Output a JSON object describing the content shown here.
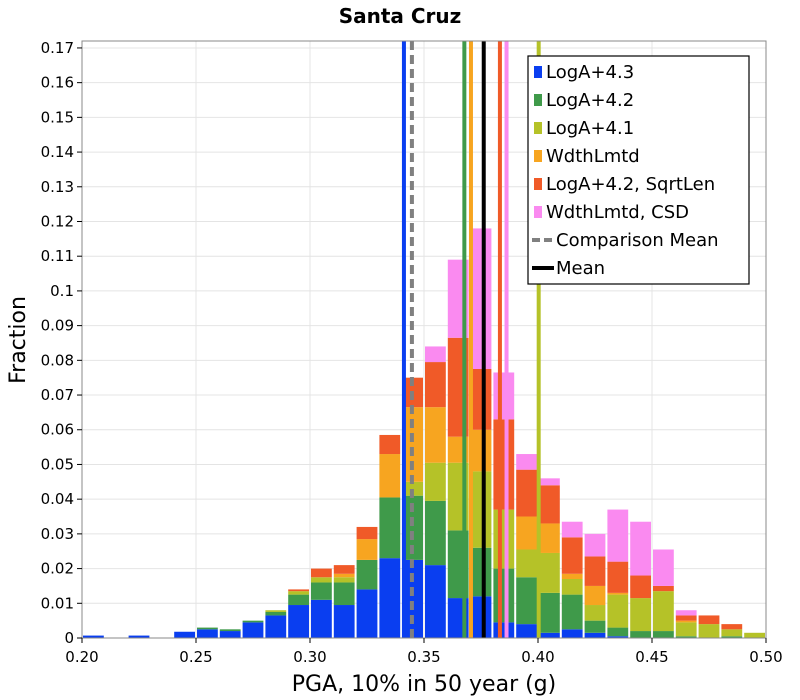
{
  "chart_data": {
    "type": "bar",
    "stacked": true,
    "title": "Santa Cruz",
    "xlabel": "PGA, 10% in 50 year (g)",
    "ylabel": "Fraction",
    "xlim": [
      0.2,
      0.5
    ],
    "ylim": [
      0,
      0.172
    ],
    "x_ticks": [
      "0.20",
      "0.25",
      "0.30",
      "0.35",
      "0.40",
      "0.45",
      "0.50"
    ],
    "y_ticks": [
      "0",
      "0.01",
      "0.02",
      "0.03",
      "0.04",
      "0.05",
      "0.06",
      "0.07",
      "0.08",
      "0.09",
      "0.1",
      "0.11",
      "0.12",
      "0.13",
      "0.14",
      "0.15",
      "0.16",
      "0.17"
    ],
    "grid": true,
    "legend_position": "top-right",
    "bin_width": 0.01,
    "bin_starts": [
      0.2,
      0.21,
      0.22,
      0.23,
      0.24,
      0.25,
      0.26,
      0.27,
      0.28,
      0.29,
      0.3,
      0.31,
      0.32,
      0.33,
      0.34,
      0.35,
      0.36,
      0.37,
      0.38,
      0.39,
      0.4,
      0.41,
      0.42,
      0.43,
      0.44,
      0.45,
      0.46,
      0.47,
      0.48,
      0.49
    ],
    "series": [
      {
        "name": "LogA+4.3",
        "color": "#0a3ef0",
        "values": [
          0.0007,
          0,
          0.0007,
          0,
          0.0018,
          0.0025,
          0.002,
          0.0045,
          0.0065,
          0.0095,
          0.011,
          0.0095,
          0.014,
          0.023,
          0.0225,
          0.021,
          0.0115,
          0.012,
          0.0045,
          0.004,
          0.0015,
          0.0025,
          0.0015,
          0.0005,
          0,
          0,
          0,
          0,
          0,
          0
        ]
      },
      {
        "name": "LogA+4.2",
        "color": "#3f9a4a",
        "values": [
          0,
          0,
          0,
          0,
          0,
          0.0005,
          0.0005,
          0.0005,
          0.001,
          0.003,
          0.005,
          0.0065,
          0.0085,
          0.0175,
          0.0185,
          0.0185,
          0.0195,
          0.014,
          0.0155,
          0.0135,
          0.0115,
          0.01,
          0.0035,
          0.0025,
          0.002,
          0.002,
          0.0005,
          0,
          0.0005,
          0
        ]
      },
      {
        "name": "LogA+4.1",
        "color": "#b5c228",
        "values": [
          0,
          0,
          0,
          0,
          0,
          0,
          0,
          0,
          0.0005,
          0.001,
          0.0015,
          0.0015,
          0,
          0,
          0.004,
          0.011,
          0.0195,
          0.022,
          0.017,
          0.008,
          0.0115,
          0.0045,
          0.0045,
          0.0095,
          0.0095,
          0.0115,
          0.004,
          0.004,
          0.002,
          0.0015
        ]
      },
      {
        "name": "WdthLmtd",
        "color": "#f7a520",
        "values": [
          0,
          0,
          0,
          0,
          0,
          0,
          0,
          0,
          0,
          0,
          0,
          0.001,
          0.006,
          0.0125,
          0.0215,
          0.016,
          0.0075,
          0.012,
          0,
          0.0095,
          0.0085,
          0.0015,
          0.0055,
          0.0005,
          0,
          0,
          0.0005,
          0,
          0,
          0
        ]
      },
      {
        "name": "LogA+4.2, SqrtLen",
        "color": "#f05a28",
        "values": [
          0,
          0,
          0,
          0,
          0,
          0,
          0,
          0,
          0,
          0.0005,
          0.0025,
          0.0025,
          0.0035,
          0.0055,
          0.0085,
          0.013,
          0.0285,
          0.0175,
          0.026,
          0.0135,
          0.011,
          0.0105,
          0.0085,
          0.009,
          0.0065,
          0.0015,
          0.0015,
          0.0025,
          0.0015,
          0
        ]
      },
      {
        "name": "WdthLmtd, CSD",
        "color": "#fa8af0",
        "values": [
          0,
          0,
          0,
          0,
          0,
          0,
          0,
          0,
          0,
          0,
          0,
          0,
          0,
          0,
          0,
          0.0045,
          0.0225,
          0.0405,
          0.0135,
          0.0045,
          0.002,
          0.0045,
          0.0065,
          0.015,
          0.0155,
          0.0105,
          0.0015,
          0,
          0,
          0
        ]
      }
    ],
    "vertical_lines": [
      {
        "series": "LogA+4.3",
        "x": 0.3412,
        "color": "#0a3ef0",
        "style": "solid"
      },
      {
        "series": "Comparison Mean",
        "x": 0.3447,
        "color": "#808080",
        "style": "dashed"
      },
      {
        "series": "LogA+4.2",
        "x": 0.3677,
        "color": "#3f9a4a",
        "style": "solid"
      },
      {
        "series": "WdthLmtd",
        "x": 0.3706,
        "color": "#f7a520",
        "style": "solid"
      },
      {
        "series": "Mean",
        "x": 0.3762,
        "color": "#000000",
        "style": "solid"
      },
      {
        "series": "LogA+4.2, SqrtLen",
        "x": 0.3833,
        "color": "#f05a28",
        "style": "solid"
      },
      {
        "series": "WdthLmtd, CSD",
        "x": 0.3862,
        "color": "#fa8af0",
        "style": "solid"
      },
      {
        "series": "LogA+4.1",
        "x": 0.4003,
        "color": "#b5c228",
        "style": "solid"
      }
    ],
    "legend": [
      {
        "label": "LogA+4.3",
        "color": "#0a3ef0",
        "kind": "box"
      },
      {
        "label": "LogA+4.2",
        "color": "#3f9a4a",
        "kind": "box"
      },
      {
        "label": "LogA+4.1",
        "color": "#b5c228",
        "kind": "box"
      },
      {
        "label": "WdthLmtd",
        "color": "#f7a520",
        "kind": "box"
      },
      {
        "label": "LogA+4.2, SqrtLen",
        "color": "#f05a28",
        "kind": "box"
      },
      {
        "label": "WdthLmtd, CSD",
        "color": "#fa8af0",
        "kind": "box"
      },
      {
        "label": "Comparison Mean",
        "color": "#808080",
        "kind": "dashed"
      },
      {
        "label": "Mean",
        "color": "#000000",
        "kind": "line"
      }
    ]
  }
}
